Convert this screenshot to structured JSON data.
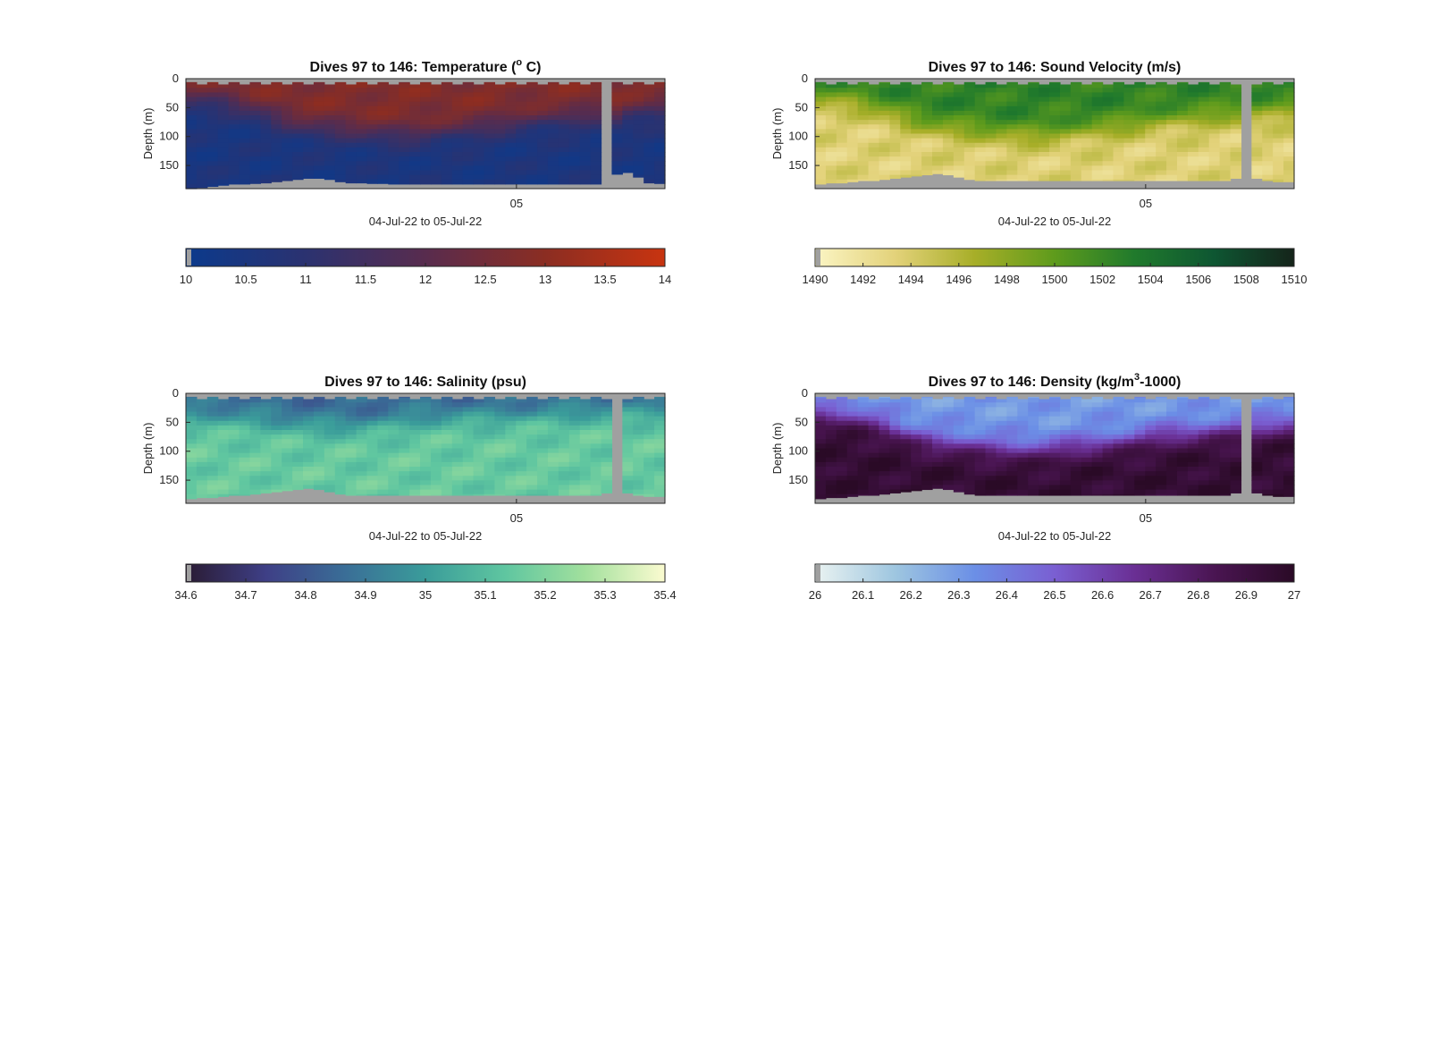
{
  "chart_data": [
    {
      "type": "heatmap",
      "title_main": "Dives 97 to 146: Temperature (",
      "title_sup": "o",
      "title_end": " C)",
      "ylabel": "Depth (m)",
      "xlabel": "04-Jul-22 to 05-Jul-22",
      "yticks": [
        "0",
        "50",
        "100",
        "150"
      ],
      "xticks": [
        "05"
      ],
      "ylim": [
        0,
        190
      ],
      "colorbar": {
        "min": 10,
        "max": 14,
        "ticks": [
          "10",
          "10.5",
          "11",
          "11.5",
          "12",
          "12.5",
          "13",
          "13.5",
          "14"
        ],
        "colors": [
          "#0b3a8c",
          "#2b3270",
          "#582c4e",
          "#8b2d22",
          "#c83410"
        ]
      },
      "surface_value": 12.8,
      "deep_value": 10.5,
      "bottom_depth": [
        190,
        188,
        186,
        184,
        182,
        182,
        181,
        180,
        178,
        176,
        174,
        172,
        172,
        174,
        178,
        180,
        180,
        181,
        181,
        182,
        182,
        182,
        182,
        182,
        182,
        182,
        182,
        182,
        182,
        182,
        182,
        182,
        182,
        182,
        182,
        182,
        182,
        182,
        182,
        175,
        165,
        162,
        170,
        180,
        181
      ],
      "mld": [
        35,
        36,
        38,
        40,
        45,
        50,
        55,
        62,
        70,
        76,
        80,
        84,
        86,
        88,
        90,
        92,
        94,
        95,
        96,
        97,
        97,
        97,
        95,
        92,
        90,
        90,
        88,
        86,
        84,
        82,
        78,
        74,
        72,
        70,
        70,
        70,
        68,
        66,
        64,
        62,
        0,
        60,
        58,
        56,
        55
      ],
      "gap": [
        0.87,
        0.895
      ]
    },
    {
      "type": "heatmap",
      "title_main": "Dives 97 to 146: Sound Velocity (m/s)",
      "title_sup": "",
      "title_end": "",
      "ylabel": "Depth (m)",
      "xlabel": "04-Jul-22 to 05-Jul-22",
      "yticks": [
        "0",
        "50",
        "100",
        "150"
      ],
      "xticks": [
        "05"
      ],
      "ylim": [
        0,
        190
      ],
      "colorbar": {
        "min": 1490,
        "max": 1510,
        "ticks": [
          "1490",
          "1492",
          "1494",
          "1496",
          "1498",
          "1500",
          "1502",
          "1504",
          "1506",
          "1508",
          "1510"
        ],
        "colors": [
          "#fbf5c4",
          "#e3d27a",
          "#a7ae28",
          "#5e9b1c",
          "#207a2c",
          "#0e5632",
          "#15241a"
        ]
      },
      "surface_value": 1502.5,
      "deep_value": 1493.5,
      "bottom_depth": [
        182,
        180,
        180,
        178,
        176,
        176,
        174,
        172,
        170,
        168,
        166,
        164,
        166,
        170,
        174,
        176,
        176,
        176,
        176,
        176,
        176,
        176,
        176,
        176,
        176,
        176,
        176,
        176,
        176,
        176,
        176,
        176,
        176,
        176,
        176,
        176,
        176,
        176,
        176,
        172,
        170,
        172,
        176,
        178,
        178
      ],
      "mld": [
        35,
        36,
        38,
        40,
        45,
        50,
        55,
        62,
        70,
        76,
        80,
        84,
        86,
        88,
        90,
        92,
        94,
        95,
        96,
        97,
        97,
        97,
        95,
        92,
        90,
        90,
        88,
        86,
        84,
        82,
        78,
        74,
        72,
        70,
        70,
        70,
        68,
        66,
        64,
        62,
        0,
        60,
        58,
        56,
        55
      ],
      "gap": [
        0.885,
        0.905
      ]
    },
    {
      "type": "heatmap",
      "title_main": "Dives 97 to 146: Salinity (psu)",
      "title_sup": "",
      "title_end": "",
      "ylabel": "Depth (m)",
      "xlabel": "04-Jul-22 to 05-Jul-22",
      "yticks": [
        "0",
        "50",
        "100",
        "150"
      ],
      "xticks": [
        "05"
      ],
      "ylim": [
        0,
        190
      ],
      "colorbar": {
        "min": 34.6,
        "max": 35.4,
        "ticks": [
          "34.6",
          "34.7",
          "34.8",
          "34.9",
          "35",
          "35.1",
          "35.2",
          "35.3",
          "35.4"
        ],
        "colors": [
          "#2a1b33",
          "#3e3f86",
          "#3a6e97",
          "#3a9c9a",
          "#5fc6a0",
          "#a2e09d",
          "#fbfbd0"
        ]
      },
      "surface_value": 34.85,
      "deep_value": 35.15,
      "bottom_depth": [
        182,
        180,
        180,
        178,
        176,
        176,
        174,
        172,
        170,
        168,
        166,
        164,
        166,
        170,
        174,
        176,
        176,
        176,
        176,
        176,
        176,
        176,
        176,
        176,
        176,
        176,
        176,
        176,
        176,
        176,
        176,
        176,
        176,
        176,
        176,
        176,
        176,
        176,
        176,
        172,
        170,
        172,
        176,
        178,
        178
      ],
      "mld": [
        40,
        40,
        40,
        42,
        44,
        45,
        46,
        48,
        50,
        52,
        54,
        56,
        56,
        56,
        56,
        56,
        56,
        54,
        52,
        50,
        48,
        46,
        44,
        44,
        42,
        42,
        40,
        40,
        40,
        40,
        38,
        38,
        38,
        36,
        36,
        36,
        36,
        34,
        34,
        34,
        0,
        32,
        32,
        32,
        30
      ],
      "gap": [
        0.88,
        0.9
      ]
    },
    {
      "type": "heatmap",
      "title_main": "Dives 97 to 146: Density (kg/m",
      "title_sup": "3",
      "title_end": "-1000)",
      "ylabel": "Depth (m)",
      "xlabel": "04-Jul-22 to 05-Jul-22",
      "yticks": [
        "0",
        "50",
        "100",
        "150"
      ],
      "xticks": [
        "05"
      ],
      "ylim": [
        0,
        190
      ],
      "colorbar": {
        "min": 26,
        "max": 27,
        "ticks": [
          "26",
          "26.1",
          "26.2",
          "26.3",
          "26.4",
          "26.5",
          "26.6",
          "26.7",
          "26.8",
          "26.9",
          "27"
        ],
        "colors": [
          "#eaf3f1",
          "#9ec6e0",
          "#6b8fe6",
          "#7a5fd2",
          "#6a2f94",
          "#4a1552",
          "#2a0a26"
        ]
      },
      "surface_value": 26.3,
      "deep_value": 26.95,
      "bottom_depth": [
        182,
        180,
        180,
        178,
        176,
        176,
        174,
        172,
        170,
        168,
        166,
        164,
        166,
        170,
        174,
        176,
        176,
        176,
        176,
        176,
        176,
        176,
        176,
        176,
        176,
        176,
        176,
        176,
        176,
        176,
        176,
        176,
        176,
        176,
        176,
        176,
        176,
        176,
        176,
        172,
        170,
        172,
        176,
        178,
        178
      ],
      "mld": [
        35,
        36,
        38,
        40,
        45,
        50,
        55,
        62,
        70,
        76,
        80,
        84,
        86,
        88,
        90,
        92,
        94,
        95,
        96,
        97,
        97,
        97,
        95,
        92,
        90,
        90,
        88,
        86,
        84,
        82,
        78,
        74,
        72,
        70,
        70,
        70,
        68,
        66,
        64,
        62,
        0,
        60,
        58,
        56,
        55
      ],
      "gap": [
        0.885,
        0.905
      ]
    }
  ]
}
